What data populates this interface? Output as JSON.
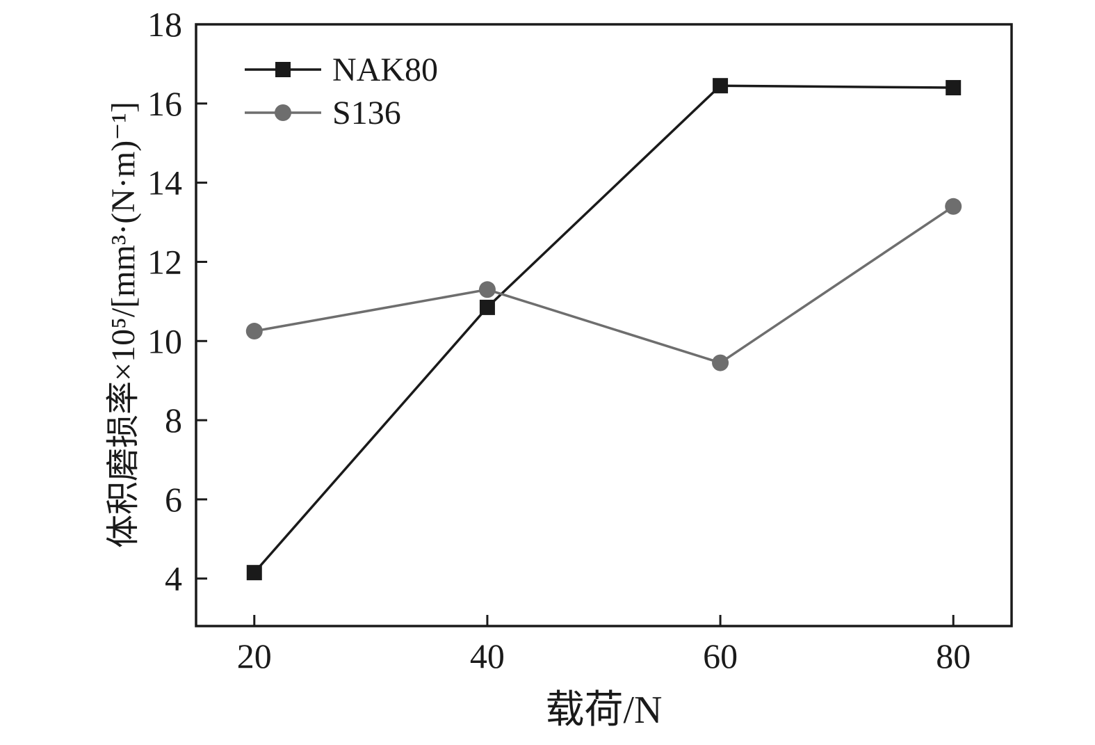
{
  "chart_data": {
    "type": "line",
    "title": "",
    "xlabel": "载荷/N",
    "ylabel": "体积磨损率×10⁵/[mm³·(N·m)⁻¹]",
    "x": [
      20,
      40,
      60,
      80
    ],
    "series": [
      {
        "name": "NAK80",
        "values": [
          4.15,
          10.85,
          16.45,
          16.4
        ],
        "color": "#1a1a1a",
        "marker": "square"
      },
      {
        "name": "S136",
        "values": [
          10.25,
          11.3,
          9.45,
          13.4
        ],
        "color": "#6e6e6e",
        "marker": "circle"
      }
    ],
    "xticks": [
      20,
      40,
      60,
      80
    ],
    "yticks": [
      4,
      6,
      8,
      10,
      12,
      14,
      16,
      18
    ],
    "xlim": [
      15,
      85
    ],
    "ylim": [
      2.8,
      18
    ],
    "grid": false,
    "legend_position": "top-left",
    "axis_color": "#1a1a1a"
  }
}
